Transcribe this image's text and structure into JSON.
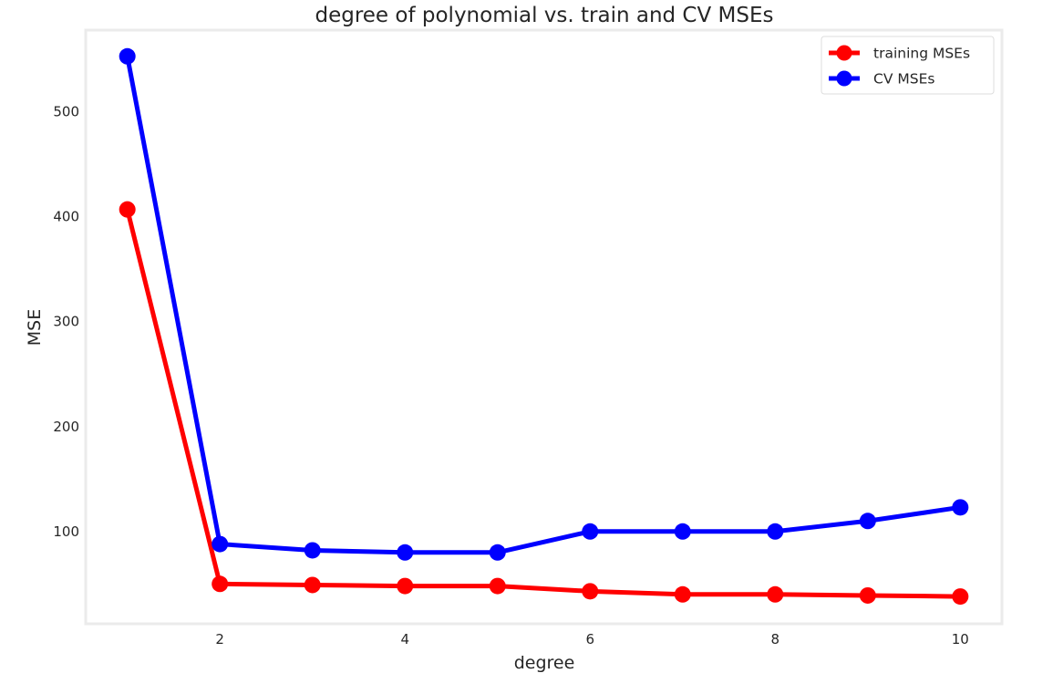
{
  "chart_data": {
    "type": "line",
    "title": "degree of polynomial vs. train and CV MSEs",
    "xlabel": "degree",
    "ylabel": "MSE",
    "x": [
      1,
      2,
      3,
      4,
      5,
      6,
      7,
      8,
      9,
      10
    ],
    "xticks": [
      2,
      4,
      6,
      8,
      10
    ],
    "yticks": [
      100,
      200,
      300,
      400,
      500
    ],
    "xlim": [
      0.55,
      10.45
    ],
    "ylim": [
      12,
      578
    ],
    "grid": false,
    "legend_position": "top-right",
    "series": [
      {
        "name": "training MSEs",
        "color": "#ff0000",
        "marker": "circle",
        "values": [
          407,
          50,
          49,
          48,
          48,
          43,
          40,
          40,
          39,
          38
        ]
      },
      {
        "name": "CV MSEs",
        "color": "#0000ff",
        "marker": "circle",
        "values": [
          553,
          88,
          82,
          80,
          80,
          100,
          100,
          100,
          110,
          123
        ]
      }
    ]
  }
}
